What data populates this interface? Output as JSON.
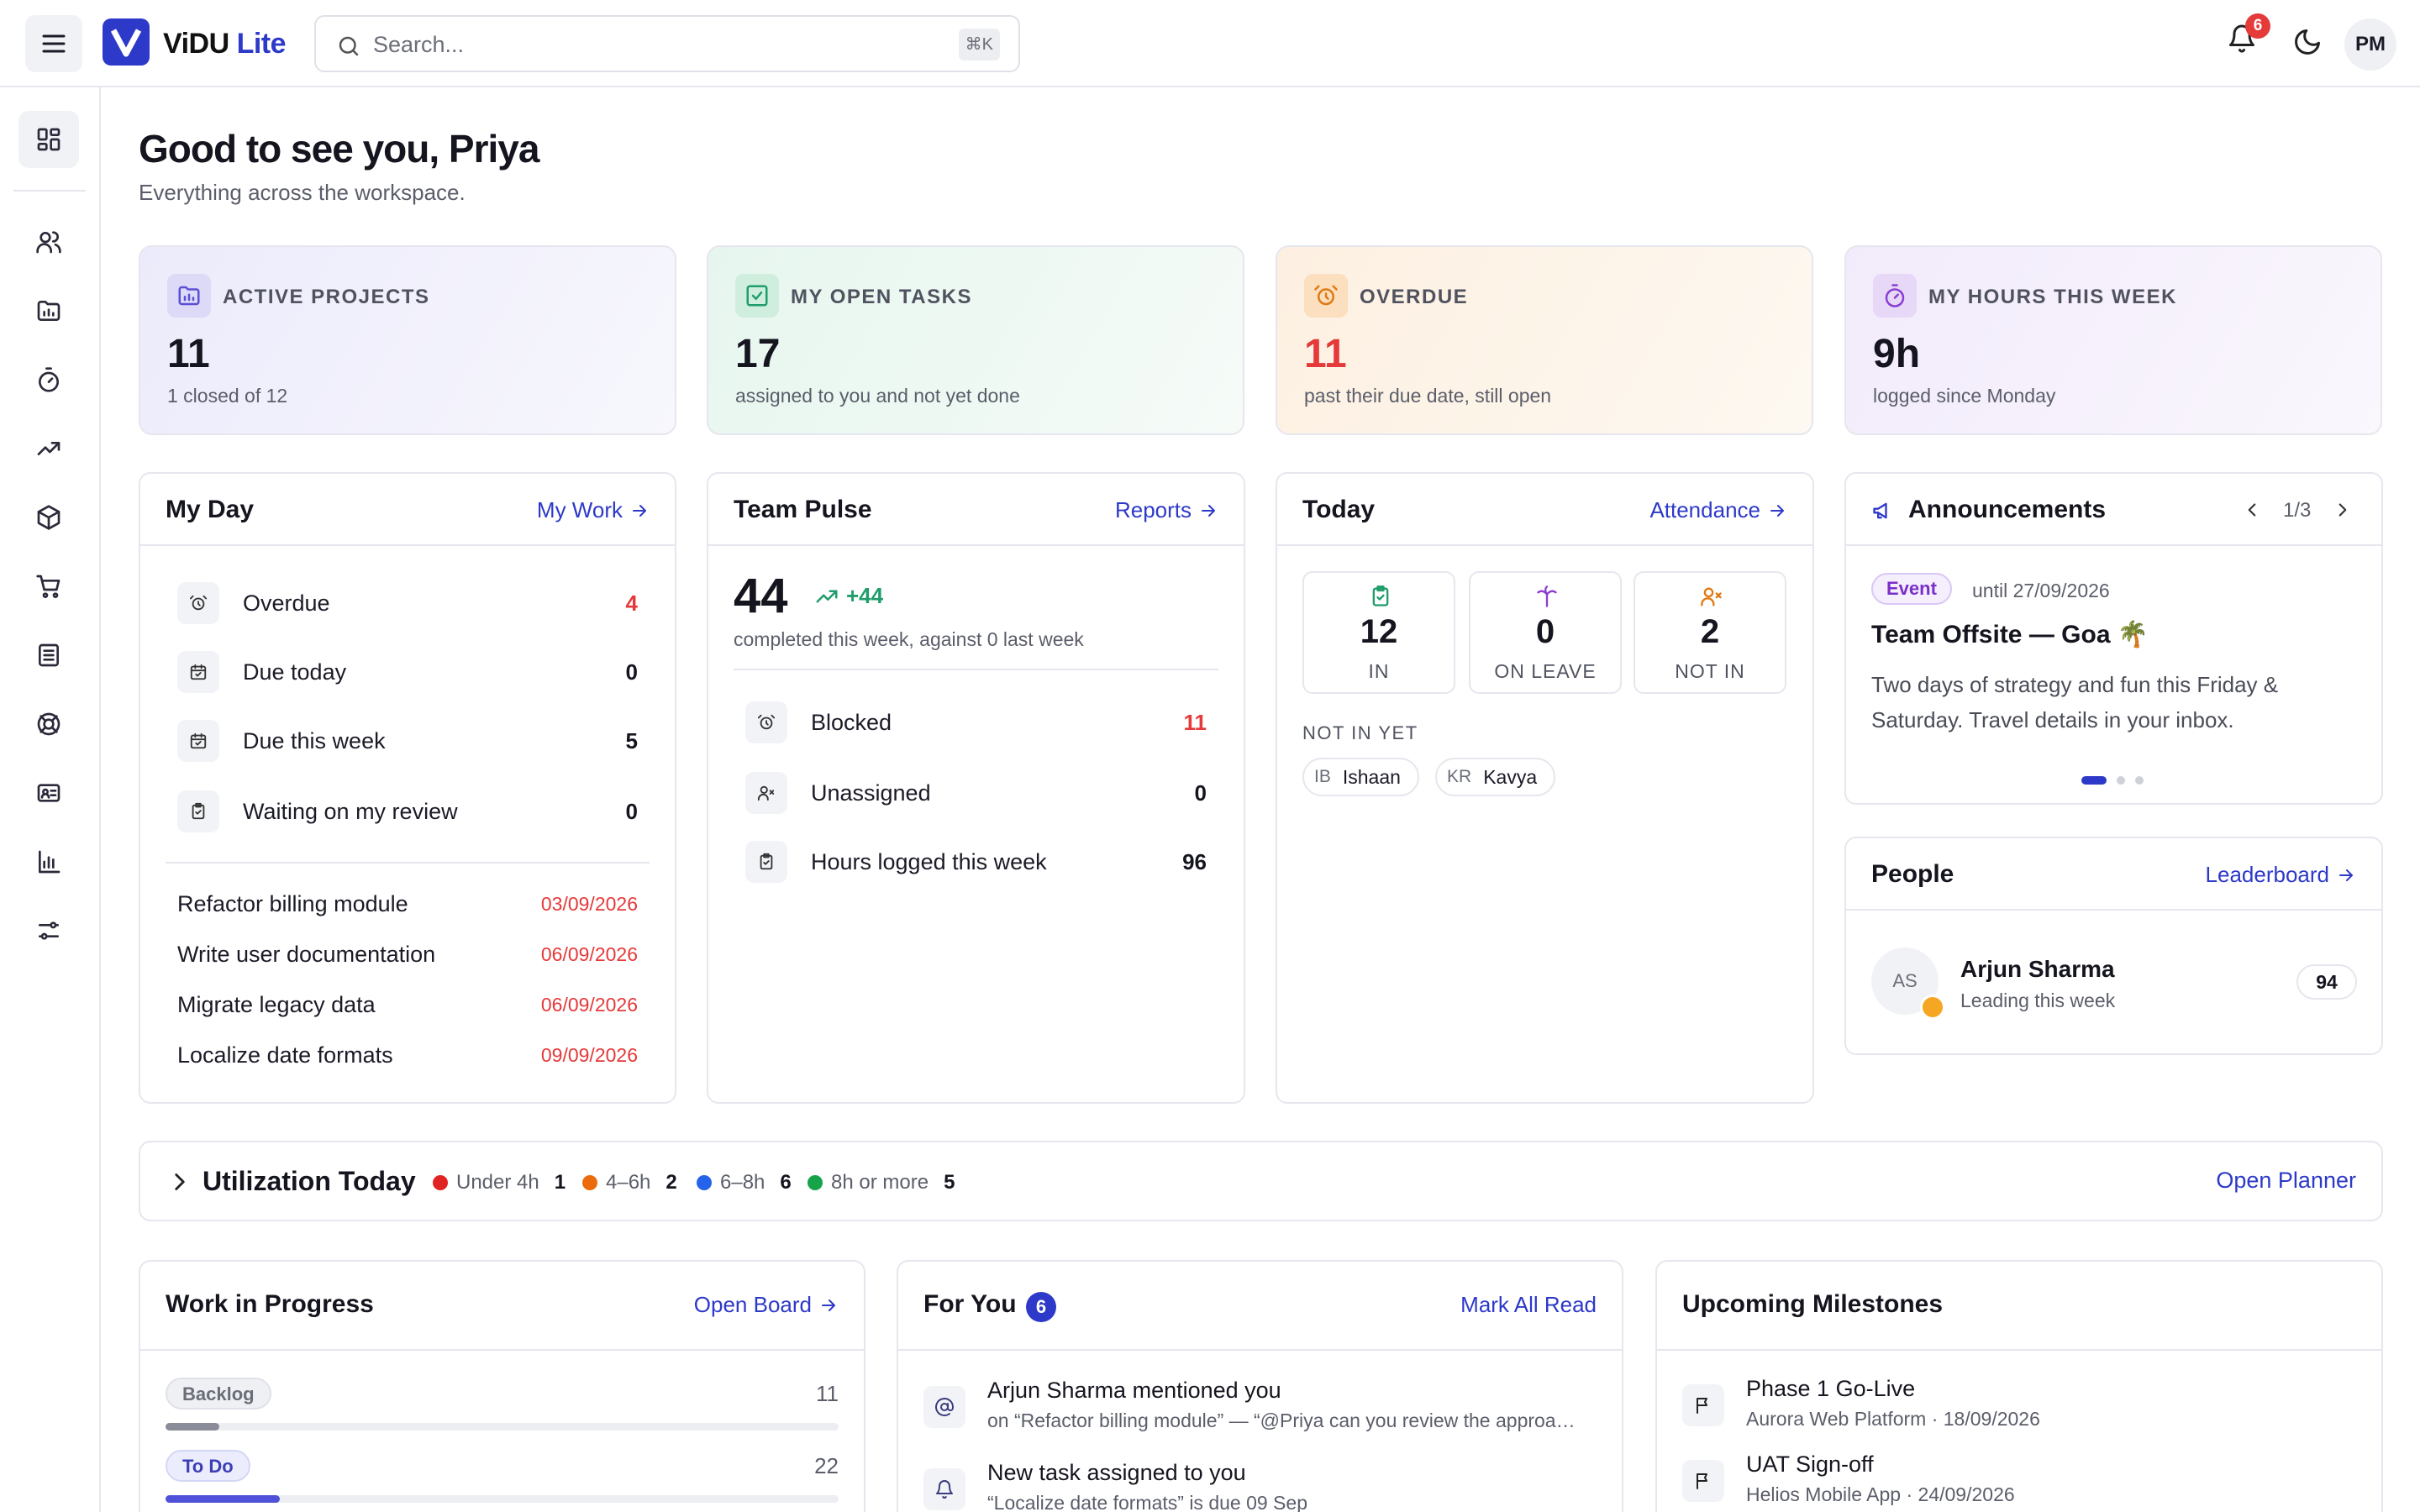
{
  "brand": {
    "name": "ViDU",
    "suffix": "Lite"
  },
  "search": {
    "placeholder": "Search...",
    "shortcut": "⌘K"
  },
  "header": {
    "notification_count": "6",
    "avatar_initials": "PM"
  },
  "page": {
    "title": "Good to see you, Priya",
    "subtitle": "Everything across the workspace."
  },
  "stats": [
    {
      "label": "ACTIVE PROJECTS",
      "value": "11",
      "sub": "1 closed of 12",
      "icon": "folder-chart-icon",
      "accent": "#5b4fd6"
    },
    {
      "label": "MY OPEN TASKS",
      "value": "17",
      "sub": "assigned to you and not yet done",
      "icon": "check-square-icon",
      "accent": "#1f9d6a"
    },
    {
      "label": "OVERDUE",
      "value": "11",
      "sub": "past their due date, still open",
      "icon": "alarm-icon",
      "accent": "#e07a12"
    },
    {
      "label": "MY HOURS THIS WEEK",
      "value": "9h",
      "sub": "logged since Monday",
      "icon": "timer-icon",
      "accent": "#8a3fd1"
    }
  ],
  "my_day": {
    "title": "My Day",
    "action": "My Work",
    "rows": [
      {
        "label": "Overdue",
        "value": "4"
      },
      {
        "label": "Due today",
        "value": "0"
      },
      {
        "label": "Due this week",
        "value": "5"
      },
      {
        "label": "Waiting on my review",
        "value": "0"
      }
    ],
    "tasks": [
      {
        "name": "Refactor billing module",
        "date": "03/09/2026"
      },
      {
        "name": "Write user documentation",
        "date": "06/09/2026"
      },
      {
        "name": "Migrate legacy data",
        "date": "06/09/2026"
      },
      {
        "name": "Localize date formats",
        "date": "09/09/2026"
      }
    ]
  },
  "team_pulse": {
    "title": "Team Pulse",
    "action": "Reports",
    "value": "44",
    "delta": "+44",
    "caption": "completed this week, against 0 last week",
    "rows": [
      {
        "label": "Blocked",
        "value": "11"
      },
      {
        "label": "Unassigned",
        "value": "0"
      },
      {
        "label": "Hours logged this week",
        "value": "96"
      }
    ]
  },
  "today": {
    "title": "Today",
    "action": "Attendance",
    "boxes": [
      {
        "value": "12",
        "label": "IN"
      },
      {
        "value": "0",
        "label": "ON LEAVE"
      },
      {
        "value": "2",
        "label": "NOT IN"
      }
    ],
    "not_in_label": "NOT IN YET",
    "people": [
      {
        "initials": "IB",
        "name": "Ishaan"
      },
      {
        "initials": "KR",
        "name": "Kavya"
      }
    ]
  },
  "announcements": {
    "title": "Announcements",
    "pager": "1/3",
    "tag": "Event",
    "until": "until 27/09/2026",
    "headline": "Team Offsite — Goa 🌴",
    "body": "Two days of strategy and fun this Friday & Saturday. Travel details in your inbox."
  },
  "people": {
    "title": "People",
    "action": "Leaderboard",
    "top": {
      "initials": "AS",
      "name": "Arjun Sharma",
      "caption": "Leading this week",
      "score": "94"
    }
  },
  "utilization": {
    "title": "Utilization Today",
    "action": "Open Planner",
    "legend": [
      {
        "label": "Under 4h",
        "count": "1",
        "color": "#e02424"
      },
      {
        "label": "4–6h",
        "count": "2",
        "color": "#ea6a0c"
      },
      {
        "label": "6–8h",
        "count": "6",
        "color": "#2563eb"
      },
      {
        "label": "8h or more",
        "count": "5",
        "color": "#16a34a"
      }
    ]
  },
  "wip": {
    "title": "Work in Progress",
    "action": "Open Board",
    "stages": [
      {
        "label": "Backlog",
        "count": "11",
        "fill": 0.08,
        "color": "#8a8d99"
      },
      {
        "label": "To Do",
        "count": "22",
        "fill": 0.17,
        "color": "#4f52d9"
      }
    ]
  },
  "for_you": {
    "title": "For You",
    "count": "6",
    "action": "Mark All Read",
    "items": [
      {
        "title": "Arjun Sharma mentioned you",
        "sub": "on “Refactor billing module” — “@Priya can you review the approa…",
        "icon": "at-icon"
      },
      {
        "title": "New task assigned to you",
        "sub": "“Localize date formats” is due 09 Sep",
        "icon": "bell-icon"
      }
    ]
  },
  "milestones": {
    "title": "Upcoming Milestones",
    "items": [
      {
        "title": "Phase 1 Go-Live",
        "sub": "Aurora Web Platform · 18/09/2026"
      },
      {
        "title": "UAT Sign-off",
        "sub": "Helios Mobile App · 24/09/2026"
      }
    ]
  }
}
